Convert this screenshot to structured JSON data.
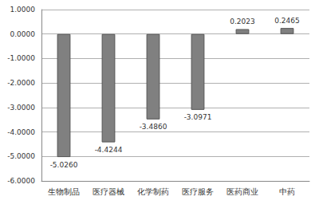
{
  "chart_data": {
    "type": "bar",
    "categories": [
      "生物制品",
      "医疗器械",
      "化学制药",
      "医疗服务",
      "医药商业",
      "中药"
    ],
    "values": [
      -5.026,
      -4.4244,
      -3.486,
      -3.0971,
      0.2023,
      0.2465
    ],
    "value_labels": [
      "-5.0260",
      "-4.4244",
      "-3.4860",
      "-3.0971",
      "0.2023",
      "0.2465"
    ],
    "color": "#808080",
    "ylim": [
      -6,
      1
    ],
    "yticks": [
      {
        "value": -6,
        "label": "-6.0000"
      },
      {
        "value": -5,
        "label": "-5.0000"
      },
      {
        "value": -4,
        "label": "-4.0000"
      },
      {
        "value": -3,
        "label": "-3.0000"
      },
      {
        "value": -2,
        "label": "-2.0000"
      },
      {
        "value": -1,
        "label": "-1.0000"
      },
      {
        "value": 0,
        "label": "0.0000"
      },
      {
        "value": 1,
        "label": "1.0000"
      }
    ],
    "grid": true,
    "data_labels": true
  }
}
